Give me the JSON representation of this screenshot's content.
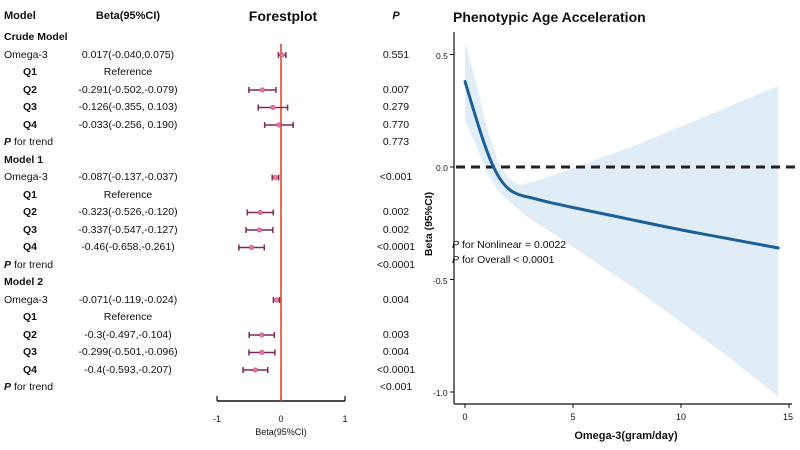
{
  "chart_data": [
    {
      "type": "forest",
      "title": "Forestplot",
      "columns": {
        "model": "Model",
        "beta": "Beta(95%CI)",
        "p": "P"
      },
      "xlabel": "Beta(95%CI)",
      "xlim": [
        -1,
        1
      ],
      "xticks": [
        "-1",
        "0",
        "1"
      ],
      "reference_line": 0,
      "rows": [
        {
          "label": "Crude Model",
          "kind": "section"
        },
        {
          "label": "Omega-3",
          "kind": "main",
          "est": 0.017,
          "lo": -0.04,
          "hi": 0.075,
          "text": "0.017(-0.040,0.075)",
          "p": "0.551"
        },
        {
          "label": "Q1",
          "kind": "sub",
          "text": "Reference",
          "p": ""
        },
        {
          "label": "Q2",
          "kind": "sub",
          "est": -0.291,
          "lo": -0.502,
          "hi": -0.079,
          "text": "-0.291(-0.502,-0.079)",
          "p": "0.007"
        },
        {
          "label": "Q3",
          "kind": "sub",
          "est": -0.126,
          "lo": -0.355,
          "hi": 0.103,
          "text": "-0.126(-0.355, 0.103)",
          "p": "0.279"
        },
        {
          "label": "Q4",
          "kind": "sub",
          "est": -0.033,
          "lo": -0.256,
          "hi": 0.19,
          "text": "-0.033(-0.256, 0.190)",
          "p": "0.770"
        },
        {
          "label": "for trend",
          "kind": "trend",
          "p": "0.773"
        },
        {
          "label": "Model 1",
          "kind": "section"
        },
        {
          "label": "Omega-3",
          "kind": "main",
          "est": -0.087,
          "lo": -0.137,
          "hi": -0.037,
          "text": "-0.087(-0.137,-0.037)",
          "p": "<0.001"
        },
        {
          "label": "Q1",
          "kind": "sub",
          "text": "Reference",
          "p": ""
        },
        {
          "label": "Q2",
          "kind": "sub",
          "est": -0.323,
          "lo": -0.526,
          "hi": -0.12,
          "text": "-0.323(-0.526,-0.120)",
          "p": "0.002"
        },
        {
          "label": "Q3",
          "kind": "sub",
          "est": -0.337,
          "lo": -0.547,
          "hi": -0.127,
          "text": "-0.337(-0.547,-0.127)",
          "p": "0.002"
        },
        {
          "label": "Q4",
          "kind": "sub",
          "est": -0.46,
          "lo": -0.658,
          "hi": -0.261,
          "text": "-0.46(-0.658,-0.261)",
          "p": "<0.0001"
        },
        {
          "label": "for trend",
          "kind": "trend",
          "p": "<0.0001"
        },
        {
          "label": "Model 2",
          "kind": "section"
        },
        {
          "label": "Omega-3",
          "kind": "main",
          "est": -0.071,
          "lo": -0.119,
          "hi": -0.024,
          "text": "-0.071(-0.119,-0.024)",
          "p": "0.004"
        },
        {
          "label": "Q1",
          "kind": "sub",
          "text": "Reference",
          "p": ""
        },
        {
          "label": "Q2",
          "kind": "sub",
          "est": -0.3,
          "lo": -0.497,
          "hi": -0.104,
          "text": "-0.3(-0.497,-0.104)",
          "p": "0.003"
        },
        {
          "label": "Q3",
          "kind": "sub",
          "est": -0.299,
          "lo": -0.501,
          "hi": -0.096,
          "text": "-0.299(-0.501,-0.096)",
          "p": "0.004"
        },
        {
          "label": "Q4",
          "kind": "sub",
          "est": -0.4,
          "lo": -0.593,
          "hi": -0.207,
          "text": "-0.4(-0.593,-0.207)",
          "p": "<0.0001"
        },
        {
          "label": "for trend",
          "kind": "trend",
          "p": "<0.001"
        }
      ],
      "trend_prefix": "P",
      "colors": {
        "ref_line": "#e8452c",
        "ci": "#7a2a5a",
        "point": "#e87aa0"
      }
    },
    {
      "type": "line",
      "title": "Phenotypic Age Acceleration",
      "xlabel": "Omega-3(gram/day)",
      "ylabel": "Beta (95%CI)",
      "xlim": [
        -0.5,
        15.3
      ],
      "ylim": [
        -1.1,
        0.6
      ],
      "xticks": [
        "0",
        "5",
        "10",
        "15"
      ],
      "yticks": [
        "0.5",
        "0.0",
        "-0.5",
        "-1.0"
      ],
      "reference_line": 0.0,
      "series": [
        {
          "name": "Beta",
          "x": [
            0,
            0.5,
            1.0,
            1.5,
            2.0,
            2.5,
            3.0,
            4.0,
            6.0,
            8.0,
            10.0,
            12.0,
            14.5
          ],
          "y": [
            0.38,
            0.22,
            0.07,
            -0.04,
            -0.1,
            -0.125,
            -0.135,
            -0.16,
            -0.2,
            -0.24,
            -0.28,
            -0.315,
            -0.36
          ],
          "color": "#1a5f96"
        }
      ],
      "ci_band": {
        "x": [
          0,
          0.5,
          1.0,
          1.5,
          2.0,
          2.5,
          3.0,
          4.0,
          6.0,
          8.0,
          10.0,
          12.0,
          14.5
        ],
        "upper": [
          0.55,
          0.38,
          0.18,
          0.03,
          -0.05,
          -0.08,
          -0.07,
          -0.04,
          0.03,
          0.1,
          0.18,
          0.26,
          0.36
        ],
        "lower": [
          0.21,
          0.1,
          -0.02,
          -0.1,
          -0.15,
          -0.19,
          -0.23,
          -0.29,
          -0.42,
          -0.55,
          -0.69,
          -0.83,
          -1.02
        ],
        "color": "#ddeaf5"
      },
      "annotations": [
        {
          "prefix": "P",
          "text": "for Nonlinear = 0.0022"
        },
        {
          "prefix": "P",
          "text": "for Overall < 0.0001"
        }
      ]
    }
  ]
}
